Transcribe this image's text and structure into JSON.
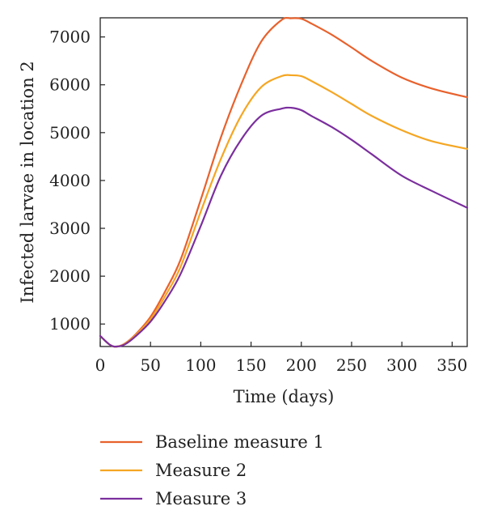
{
  "chart_data": {
    "type": "line",
    "title": "",
    "xlabel": "Time (days)",
    "ylabel": "Infected larvae in location 2",
    "xlim": [
      0,
      365
    ],
    "ylim": [
      530,
      7400
    ],
    "xticks": [
      0,
      50,
      100,
      150,
      200,
      250,
      300,
      350
    ],
    "yticks": [
      1000,
      2000,
      3000,
      4000,
      5000,
      6000,
      7000
    ],
    "grid": false,
    "legend_position": "bottom",
    "series": [
      {
        "name": "Baseline measure 1",
        "color": "#e8612c",
        "x": [
          0,
          10,
          17,
          25,
          35,
          50,
          65,
          80,
          100,
          120,
          140,
          160,
          180,
          190,
          200,
          210,
          230,
          250,
          270,
          300,
          330,
          365
        ],
        "y": [
          750,
          560,
          530,
          600,
          780,
          1150,
          1700,
          2350,
          3600,
          4900,
          6000,
          6900,
          7350,
          7390,
          7380,
          7280,
          7050,
          6780,
          6500,
          6150,
          5920,
          5740
        ]
      },
      {
        "name": "Measure 2",
        "color": "#f5a623",
        "x": [
          0,
          10,
          17,
          25,
          35,
          50,
          65,
          80,
          100,
          120,
          140,
          160,
          180,
          190,
          200,
          210,
          230,
          250,
          270,
          300,
          330,
          365
        ],
        "y": [
          750,
          560,
          530,
          590,
          760,
          1100,
          1600,
          2200,
          3350,
          4450,
          5350,
          5950,
          6180,
          6200,
          6180,
          6080,
          5850,
          5600,
          5350,
          5050,
          4820,
          4660
        ]
      },
      {
        "name": "Measure 3",
        "color": "#7b2f9e",
        "x": [
          0,
          10,
          17,
          25,
          35,
          50,
          65,
          80,
          100,
          120,
          140,
          160,
          180,
          190,
          200,
          210,
          230,
          250,
          270,
          300,
          330,
          365
        ],
        "y": [
          750,
          560,
          530,
          580,
          740,
          1050,
          1500,
          2050,
          3050,
          4100,
          4850,
          5350,
          5500,
          5520,
          5470,
          5350,
          5120,
          4850,
          4550,
          4100,
          3780,
          3430
        ]
      }
    ]
  }
}
